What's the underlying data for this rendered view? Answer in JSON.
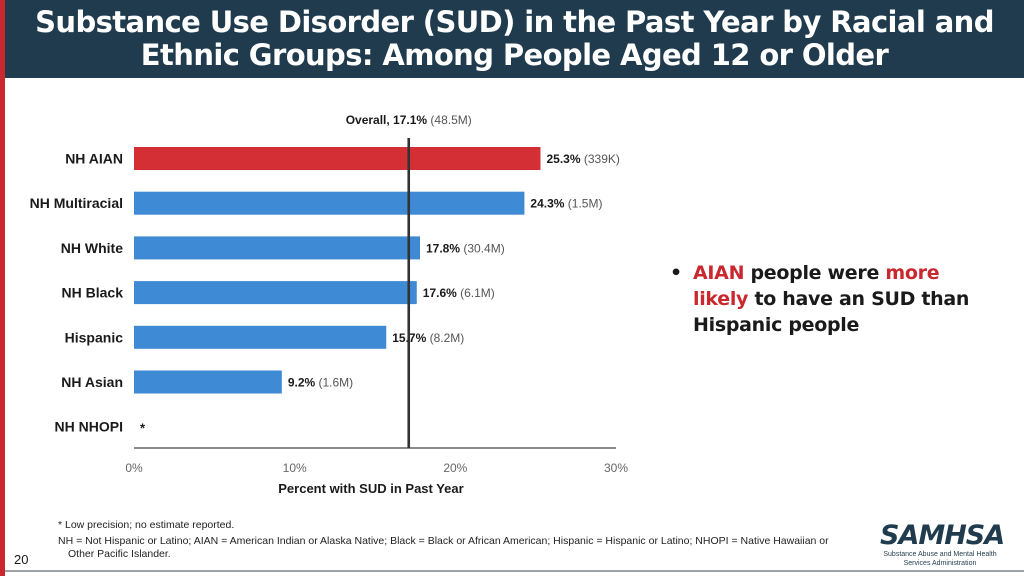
{
  "title": "Substance Use Disorder (SUD) in the Past Year by Racial and Ethnic Groups: Among People Aged 12 or Older",
  "chart_data": {
    "type": "bar",
    "orientation": "horizontal",
    "categories": [
      "NH AIAN",
      "NH Multiracial",
      "NH White",
      "NH Black",
      "Hispanic",
      "NH Asian",
      "NH NHOPI"
    ],
    "values": [
      25.3,
      24.3,
      17.8,
      17.6,
      15.7,
      9.2,
      null
    ],
    "value_labels": [
      "25.3%",
      "24.3%",
      "17.8%",
      "17.6%",
      "15.7%",
      "9.2%",
      "*"
    ],
    "count_labels": [
      "(339K)",
      "(1.5M)",
      "(30.4M)",
      "(6.1M)",
      "(8.2M)",
      "(1.6M)",
      ""
    ],
    "highlight": "NH AIAN",
    "colors": {
      "default": "#3e8ad4",
      "highlight": "#d32f35"
    },
    "xlim": [
      0,
      30
    ],
    "xticks": [
      "0%",
      "10%",
      "20%",
      "30%"
    ],
    "xlabel": "Percent with SUD in Past Year",
    "reference": {
      "value": 17.1,
      "label": "Overall, 17.1%",
      "count": "(48.5M)"
    },
    "grid": false,
    "legend": "none"
  },
  "bullet": {
    "dot": "•",
    "part1": "AIAN",
    "part2": " people were ",
    "part3": "more likely",
    "part4": " to have an SUD than Hispanic people"
  },
  "footnote_1": "* Low precision; no estimate reported.",
  "footnote_2_line1": "NH = Not Hispanic or Latino; AIAN = American Indian or Alaska Native; Black = Black or African American; Hispanic = Hispanic or Latino; NHOPI = Native Hawaiian or",
  "footnote_2_line2": "Other Pacific Islander.",
  "page_number": "20",
  "logo": {
    "name": "SAMHSA",
    "line1": "Substance Abuse and Mental Health",
    "line2": "Services Administration"
  }
}
